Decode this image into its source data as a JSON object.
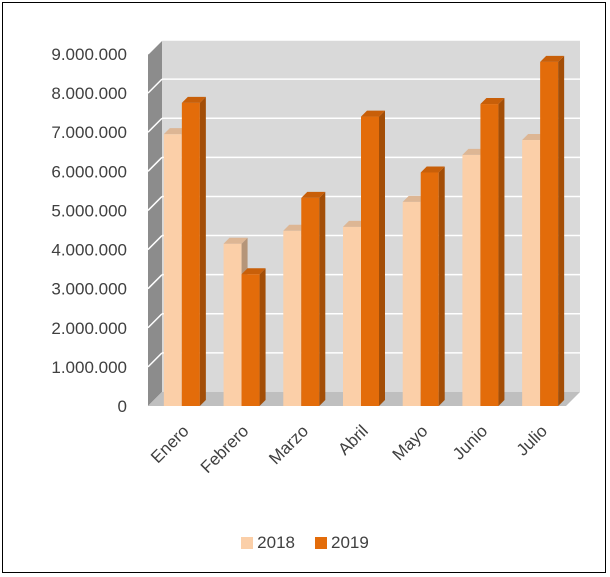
{
  "chart_data": {
    "type": "bar",
    "categories": [
      "Enero",
      "Febrero",
      "Marzo",
      "Abril",
      "Mayo",
      "Junio",
      "Julio"
    ],
    "series": [
      {
        "name": "2018",
        "color": "#FBCFA8",
        "values": [
          6950000,
          4150000,
          4480000,
          4580000,
          5220000,
          6420000,
          6800000
        ]
      },
      {
        "name": "2019",
        "color": "#E36C0A",
        "values": [
          7750000,
          3370000,
          5320000,
          7400000,
          5970000,
          7720000,
          8800000
        ]
      }
    ],
    "yticks": [
      "0",
      "1.000.000",
      "2.000.000",
      "3.000.000",
      "4.000.000",
      "5.000.000",
      "6.000.000",
      "7.000.000",
      "8.000.000",
      "9.000.000"
    ],
    "ylim": [
      0,
      9000000
    ],
    "title": "",
    "xlabel": "",
    "ylabel": "",
    "grid": true,
    "legend_position": "bottom",
    "style": "3d-clustered-column"
  }
}
